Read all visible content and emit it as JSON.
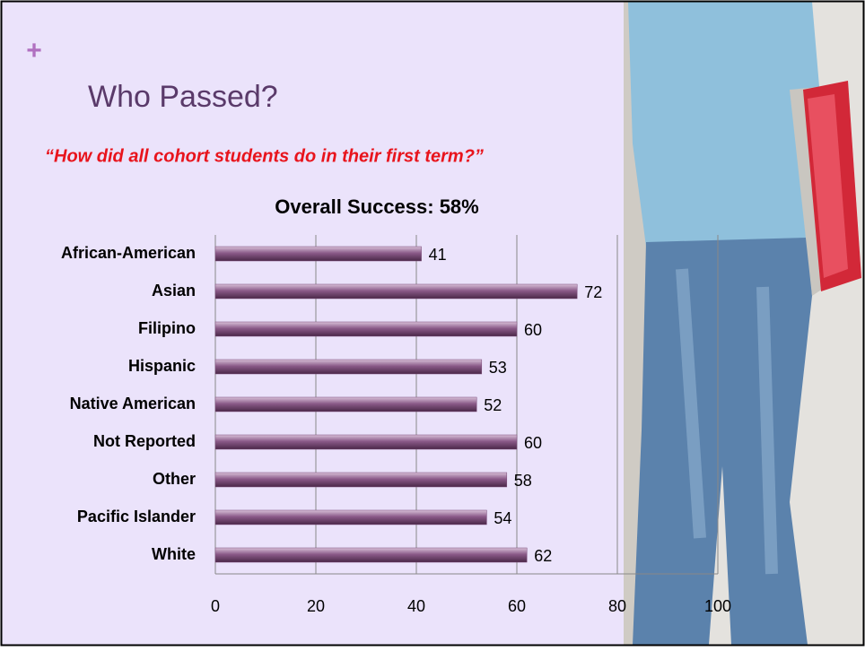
{
  "slide": {
    "marker": "+",
    "heading": "Who Passed?",
    "question": "“How did all cohort students do in their first term?”"
  },
  "chart_data": {
    "type": "bar",
    "orientation": "horizontal",
    "title": "Overall Success: 58%",
    "categories": [
      "African-American",
      "Asian",
      "Filipino",
      "Hispanic",
      "Native American",
      "Not Reported",
      "Other",
      "Pacific Islander",
      "White"
    ],
    "values": [
      41,
      72,
      60,
      53,
      52,
      60,
      58,
      54,
      62
    ],
    "color": "#7a4a78",
    "xlim": [
      0,
      100
    ],
    "xticks": [
      0,
      20,
      40,
      60,
      80,
      100
    ],
    "grid": true
  }
}
